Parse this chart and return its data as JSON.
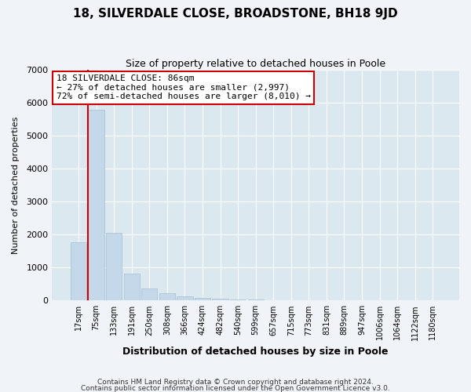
{
  "title": "18, SILVERDALE CLOSE, BROADSTONE, BH18 9JD",
  "subtitle": "Size of property relative to detached houses in Poole",
  "xlabel": "Distribution of detached houses by size in Poole",
  "ylabel": "Number of detached properties",
  "bar_labels": [
    "17sqm",
    "75sqm",
    "133sqm",
    "191sqm",
    "250sqm",
    "308sqm",
    "366sqm",
    "424sqm",
    "482sqm",
    "540sqm",
    "599sqm",
    "657sqm",
    "715sqm",
    "773sqm",
    "831sqm",
    "889sqm",
    "947sqm",
    "1006sqm",
    "1064sqm",
    "1122sqm",
    "1180sqm"
  ],
  "bar_values": [
    1780,
    5800,
    2060,
    820,
    360,
    225,
    120,
    80,
    50,
    30,
    20,
    10,
    5,
    0,
    0,
    0,
    0,
    0,
    0,
    0,
    0
  ],
  "bar_color": "#c5d8ea",
  "bar_edge_color": "#aac4da",
  "vline_color": "#cc0000",
  "annotation_title": "18 SILVERDALE CLOSE: 86sqm",
  "annotation_line1": "← 27% of detached houses are smaller (2,997)",
  "annotation_line2": "72% of semi-detached houses are larger (8,010) →",
  "annotation_box_color": "#ffffff",
  "annotation_box_edge": "#cc0000",
  "ylim": [
    0,
    7000
  ],
  "yticks": [
    0,
    1000,
    2000,
    3000,
    4000,
    5000,
    6000,
    7000
  ],
  "footer1": "Contains HM Land Registry data © Crown copyright and database right 2024.",
  "footer2": "Contains public sector information licensed under the Open Government Licence v3.0.",
  "bg_color": "#f0f4f8",
  "plot_bg_color": "#dce8f0"
}
